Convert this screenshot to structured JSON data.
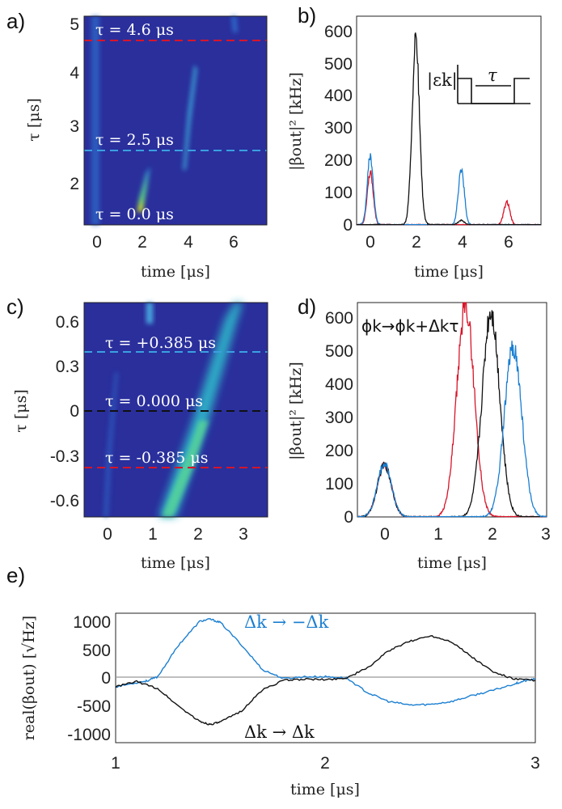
{
  "panels": {
    "a": {
      "label": "a)",
      "xlabel": "time [μs]",
      "ylabel": "τ [μs]",
      "xticks": [
        "0",
        "2",
        "4",
        "6"
      ],
      "yticks": [
        "2",
        "3",
        "4",
        "5"
      ],
      "annotations": [
        "τ = 4.6 μs",
        "τ = 2.5 μs",
        "τ = 0.0 μs"
      ]
    },
    "b": {
      "label": "b)",
      "xlabel": "time [μs]",
      "ylabel": "|βout|² [kHz]",
      "xticks": [
        "0",
        "2",
        "4",
        "6"
      ],
      "yticks": [
        "0",
        "100",
        "200",
        "300",
        "400",
        "500",
        "600"
      ],
      "inset_labels": [
        "|εk|",
        "τ"
      ]
    },
    "c": {
      "label": "c)",
      "xlabel": "time [μs]",
      "ylabel": "τ [μs]",
      "xticks": [
        "0",
        "1",
        "2",
        "3"
      ],
      "yticks": [
        "0.6",
        "0.3",
        "0",
        "-0.3",
        "-0.6"
      ],
      "annotations": [
        "τ = +0.385 μs",
        "τ = 0.000 μs",
        "τ = -0.385 μs"
      ]
    },
    "d": {
      "label": "d)",
      "xlabel": "time [μs]",
      "ylabel": "|βout|² [kHz]",
      "xticks": [
        "0",
        "1",
        "2",
        "3"
      ],
      "yticks": [
        "0",
        "100",
        "200",
        "300",
        "400",
        "500",
        "600"
      ],
      "annotation": "ϕk→ϕk+Δkτ"
    },
    "e": {
      "label": "e)",
      "xlabel": "time [μs]",
      "ylabel": "real(βout) [√Hz]",
      "xticks": [
        "1",
        "2",
        "3"
      ],
      "yticks": [
        "1000",
        "500",
        "0",
        "-500",
        "-1000"
      ],
      "legend_blue": "Δk → −Δk",
      "legend_black": "Δk → Δk"
    }
  },
  "colors": {
    "red": "#d7152a",
    "black": "#111111",
    "blue": "#1b7fd1",
    "heat_bg": "#2a2f9c",
    "cyan_dash": "#3aa0e0"
  },
  "chart_data": [
    {
      "type": "heatmap",
      "panel": "a",
      "x_range": [
        -0.6,
        7.5
      ],
      "y_range": [
        1.0,
        5.2
      ],
      "dashed_lines_tau": [
        4.6,
        2.5
      ],
      "note": "bright echo streaks near t=0, t≈2 (τ 1.2–2.2), t≈4 (τ 2.2–4.4), t≈6 (τ 4.6–5.2)"
    },
    {
      "type": "line",
      "panel": "b",
      "xlim": [
        -0.6,
        7.5
      ],
      "ylim": [
        0,
        640
      ],
      "series": [
        {
          "color": "red",
          "peaks": [
            [
              0.0,
              160
            ],
            [
              6.0,
              70
            ]
          ]
        },
        {
          "color": "blue",
          "peaks": [
            [
              0.0,
              210
            ],
            [
              4.0,
              170
            ]
          ]
        },
        {
          "color": "black",
          "peaks": [
            [
              2.0,
              565
            ],
            [
              4.0,
              15
            ]
          ]
        }
      ]
    },
    {
      "type": "heatmap",
      "panel": "c",
      "x_range": [
        -0.6,
        3.5
      ],
      "y_range": [
        -0.7,
        0.7
      ],
      "dashed_lines_tau": [
        0.385,
        0.0,
        -0.385
      ],
      "note": "diagonal bright band from (t≈1.2, τ=-0.7) to (t≈2.6, τ=0.7)"
    },
    {
      "type": "line",
      "panel": "d",
      "xlim": [
        -0.5,
        3.0
      ],
      "ylim": [
        0,
        640
      ],
      "series": [
        {
          "color": "red",
          "peaks": [
            [
              0.0,
              155
            ],
            [
              1.5,
              630
            ]
          ]
        },
        {
          "color": "black",
          "peaks": [
            [
              0.0,
              155
            ],
            [
              1.97,
              615
            ]
          ]
        },
        {
          "color": "blue",
          "peaks": [
            [
              0.0,
              160
            ],
            [
              2.38,
              505
            ]
          ]
        }
      ]
    },
    {
      "type": "line",
      "panel": "e",
      "xlim": [
        1.0,
        3.0
      ],
      "ylim": [
        -1100,
        1100
      ],
      "series": [
        {
          "color": "blue",
          "x": [
            1.0,
            1.1,
            1.15,
            1.2,
            1.3,
            1.4,
            1.45,
            1.5,
            1.6,
            1.7,
            1.8,
            1.9,
            2.0,
            2.1,
            2.2,
            2.3,
            2.4,
            2.5,
            2.6,
            2.7,
            2.8,
            2.9,
            2.95,
            3.0
          ],
          "y": [
            -150,
            -80,
            -50,
            20,
            560,
            960,
            1000,
            940,
            560,
            140,
            -10,
            20,
            20,
            0,
            -250,
            -400,
            -460,
            -450,
            -400,
            -300,
            -210,
            -100,
            -50,
            -20
          ]
        },
        {
          "color": "black",
          "x": [
            1.0,
            1.1,
            1.2,
            1.3,
            1.4,
            1.45,
            1.5,
            1.6,
            1.7,
            1.8,
            1.9,
            2.0,
            2.1,
            2.2,
            2.3,
            2.4,
            2.5,
            2.6,
            2.7,
            2.8,
            2.9,
            3.0
          ],
          "y": [
            -150,
            -60,
            -180,
            -480,
            -740,
            -790,
            -750,
            -560,
            -200,
            -40,
            -20,
            -30,
            0,
            170,
            460,
            620,
            720,
            620,
            350,
            100,
            -20,
            -40
          ]
        }
      ]
    }
  ]
}
